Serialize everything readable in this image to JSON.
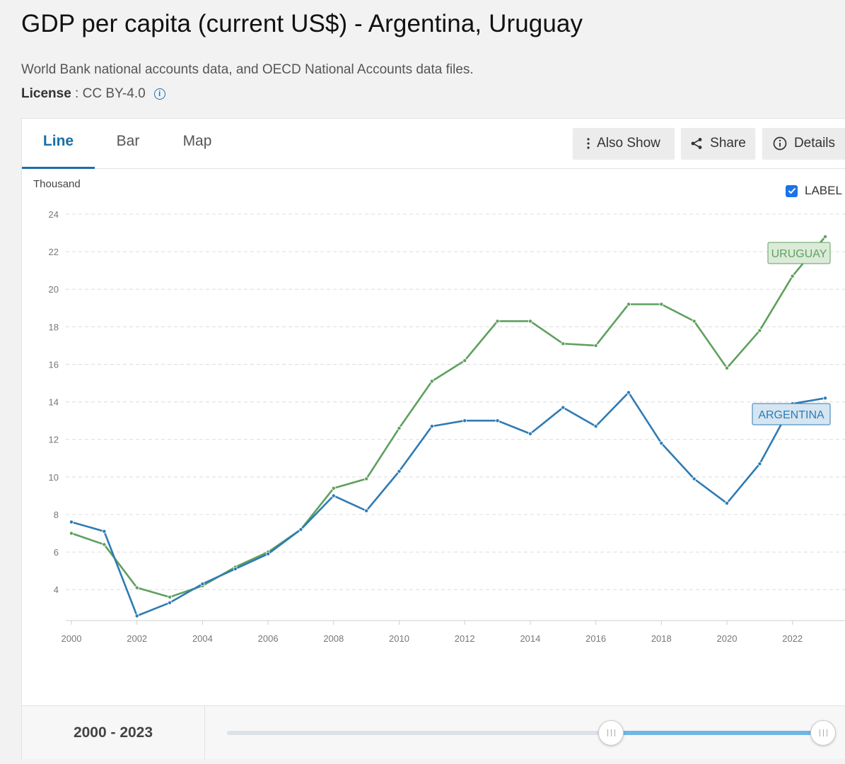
{
  "page": {
    "title": "GDP per capita (current US$) - Argentina, Uruguay",
    "source": "World Bank national accounts data, and OECD National Accounts data files.",
    "license_label": "License",
    "license_value": " : CC BY-4.0"
  },
  "tabs": [
    {
      "label": "Line",
      "active": true
    },
    {
      "label": "Bar",
      "active": false
    },
    {
      "label": "Map",
      "active": false
    }
  ],
  "toolbar": {
    "also_show": "Also Show",
    "share": "Share",
    "details": "Details"
  },
  "label_toggle": {
    "label": "LABEL",
    "checked": true
  },
  "range": {
    "label": "2000 - 2023",
    "start": 2000,
    "end": 2023
  },
  "chart_data": {
    "type": "line",
    "ylabel": "Thousand",
    "ylim": [
      2,
      24
    ],
    "yticks": [
      4,
      6,
      8,
      10,
      12,
      14,
      16,
      18,
      20,
      22,
      24
    ],
    "xticks": [
      2000,
      2002,
      2004,
      2006,
      2008,
      2010,
      2012,
      2014,
      2016,
      2018,
      2020,
      2022
    ],
    "grid": true,
    "x": [
      2000,
      2001,
      2002,
      2003,
      2004,
      2005,
      2006,
      2007,
      2008,
      2009,
      2010,
      2011,
      2012,
      2013,
      2014,
      2015,
      2016,
      2017,
      2018,
      2019,
      2020,
      2021,
      2022,
      2023
    ],
    "series": [
      {
        "name": "URUGUAY",
        "color": "#5ea05e",
        "label_fill": "#dcebd9",
        "values": [
          7.0,
          6.4,
          4.1,
          3.6,
          4.2,
          5.2,
          6.0,
          7.2,
          9.4,
          9.9,
          12.6,
          15.1,
          16.2,
          18.3,
          18.3,
          17.1,
          17.0,
          19.2,
          19.2,
          18.3,
          15.8,
          17.8,
          20.7,
          22.8
        ]
      },
      {
        "name": "ARGENTINA",
        "color": "#2e7bb4",
        "label_fill": "#d5e5f1",
        "values": [
          7.6,
          7.1,
          2.6,
          3.3,
          4.3,
          5.1,
          5.9,
          7.2,
          9.0,
          8.2,
          10.3,
          12.7,
          13.0,
          13.0,
          12.3,
          13.7,
          12.7,
          14.5,
          11.8,
          9.9,
          8.6,
          10.7,
          13.9,
          14.2
        ]
      }
    ]
  }
}
